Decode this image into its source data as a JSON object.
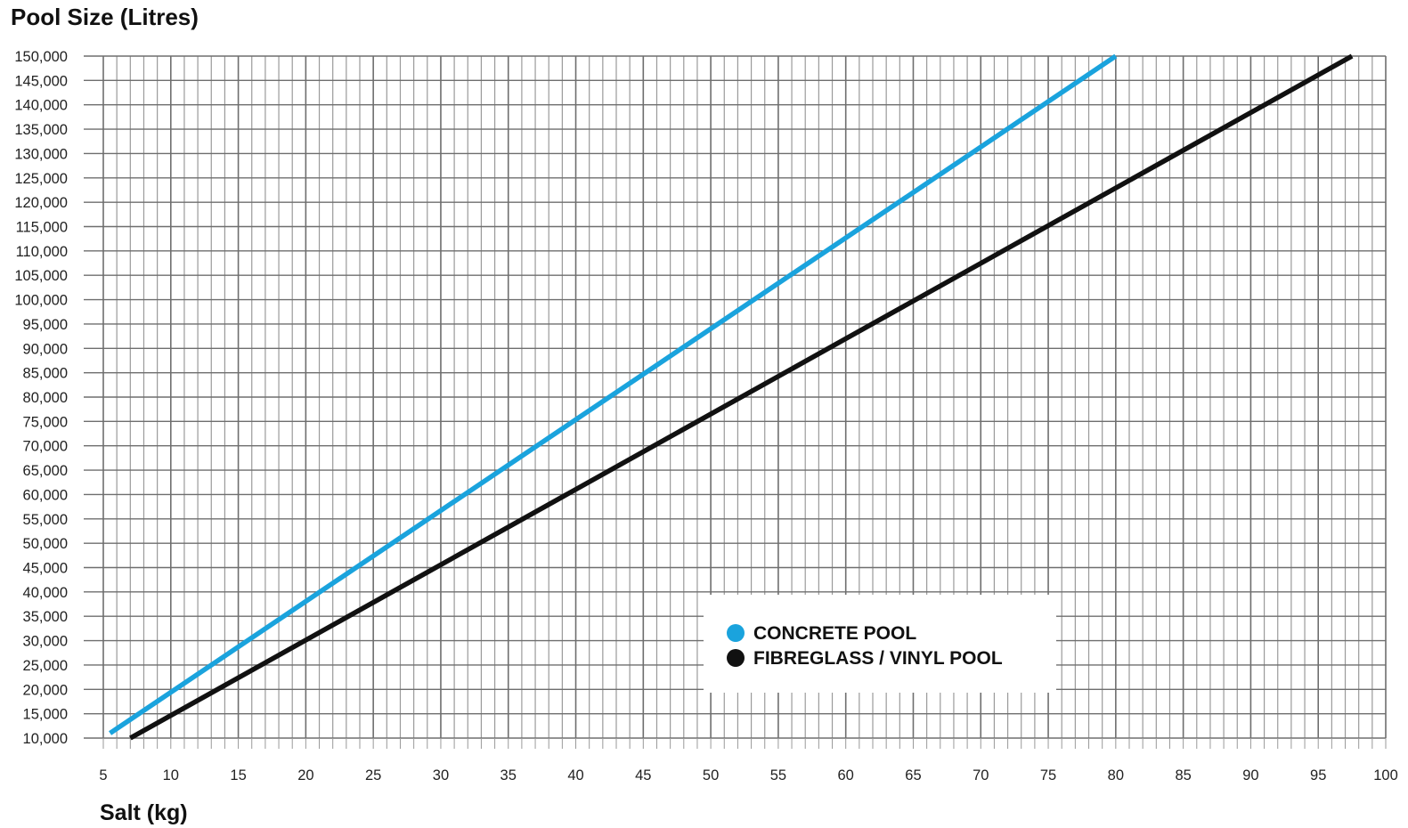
{
  "chart_data": {
    "type": "line",
    "title": "Pool Size (Litres)",
    "xlabel": "Salt (kg)",
    "ylabel": "Pool Size (Litres)",
    "xlim": [
      5,
      100
    ],
    "ylim": [
      10000,
      150000
    ],
    "x_ticks": [
      "5",
      "10",
      "15",
      "20",
      "25",
      "30",
      "35",
      "40",
      "45",
      "50",
      "55",
      "60",
      "65",
      "70",
      "75",
      "80",
      "85",
      "90",
      "95",
      "100"
    ],
    "y_ticks": [
      "10,000",
      "15,000",
      "20,000",
      "25,000",
      "30,000",
      "35,000",
      "40,000",
      "45,000",
      "50,000",
      "55,000",
      "60,000",
      "65,000",
      "70,000",
      "75,000",
      "80,000",
      "85,000",
      "90,000",
      "95,000",
      "100,000",
      "105,000",
      "110,000",
      "115,000",
      "120,000",
      "125,000",
      "130,000",
      "135,000",
      "140,000",
      "145,000",
      "150,000"
    ],
    "grid": true,
    "legend_position": "bottom-center",
    "series": [
      {
        "name": "CONCRETE POOL",
        "color": "#1aa3dd",
        "x": [
          5.5,
          80
        ],
        "y": [
          11000,
          150000
        ]
      },
      {
        "name": "FIBREGLASS / VINYL POOL",
        "color": "#111111",
        "x": [
          7,
          97.5
        ],
        "y": [
          10000,
          150000
        ]
      }
    ]
  }
}
